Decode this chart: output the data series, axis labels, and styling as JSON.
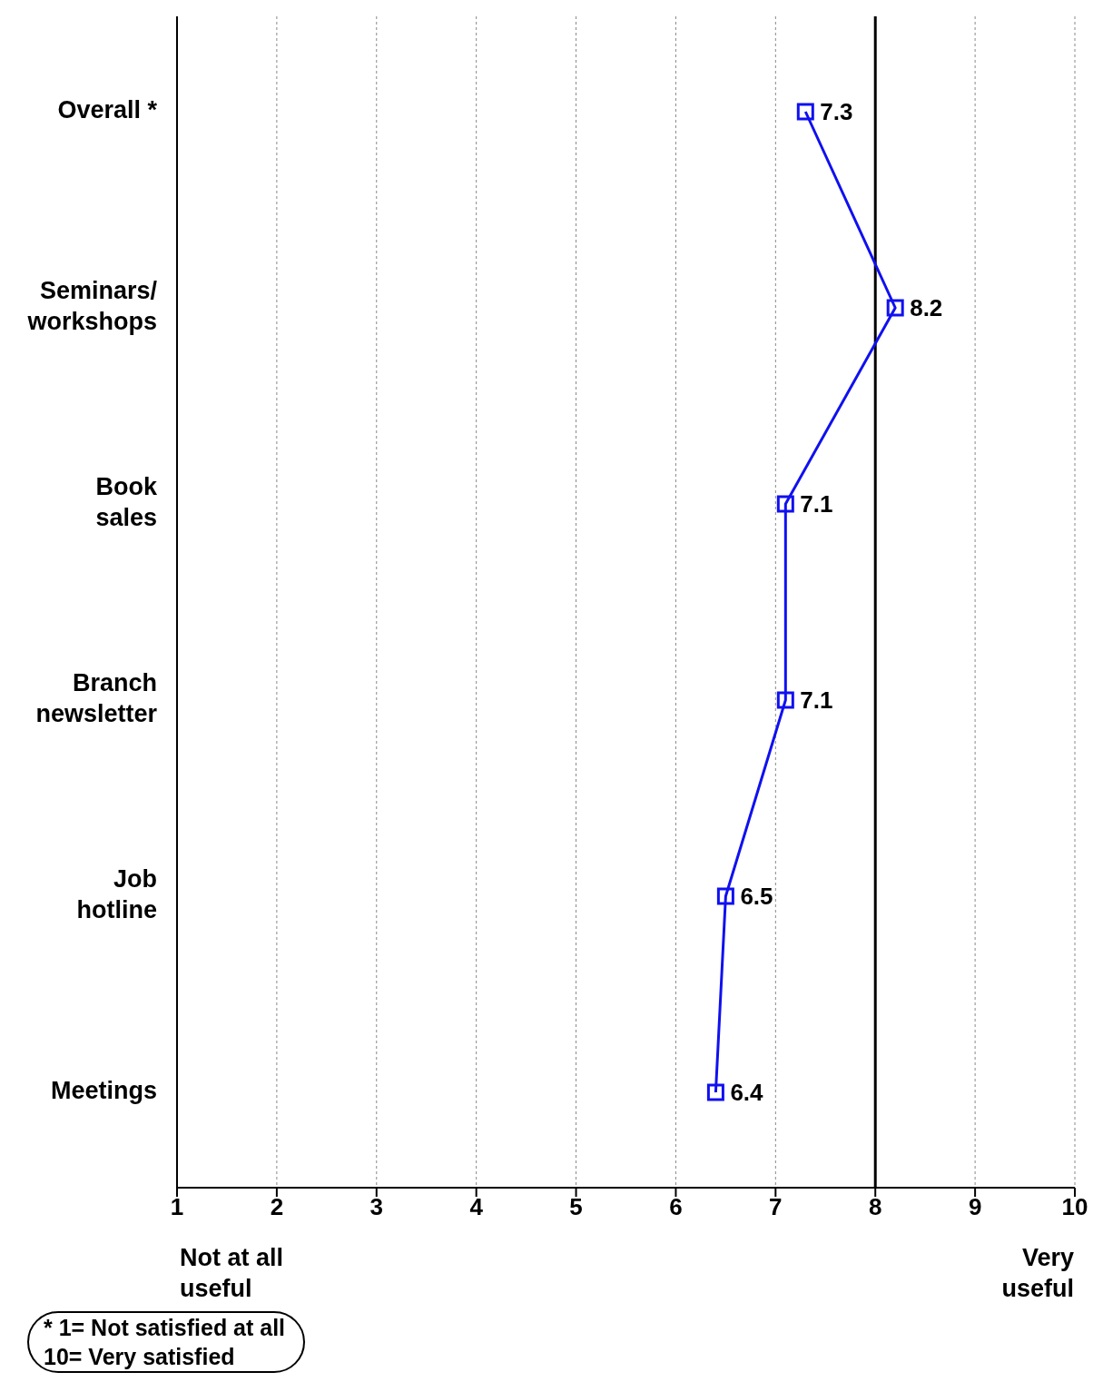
{
  "chart_data": {
    "type": "line",
    "orientation": "horizontal",
    "categories": [
      "Overall *",
      "Seminars/\nworkshops",
      "Book\nsales",
      "Branch\nnewsletter",
      "Job\nhotline",
      "Meetings"
    ],
    "values": [
      7.3,
      8.2,
      7.1,
      7.1,
      6.5,
      6.4
    ],
    "color": "#1010f0",
    "marker": "square",
    "data_labels": true,
    "xlim": [
      1,
      10
    ],
    "xticks": [
      1,
      2,
      3,
      4,
      5,
      6,
      7,
      8,
      9,
      10
    ],
    "grid": "x",
    "ref_lines": [
      {
        "axis": "x",
        "value": 8,
        "color": "#000000"
      }
    ],
    "annotations": [
      "Not at all\nuseful",
      "Very\nuseful",
      "* 1=   Not satisfied at all\n10=   Very satisfied"
    ]
  }
}
